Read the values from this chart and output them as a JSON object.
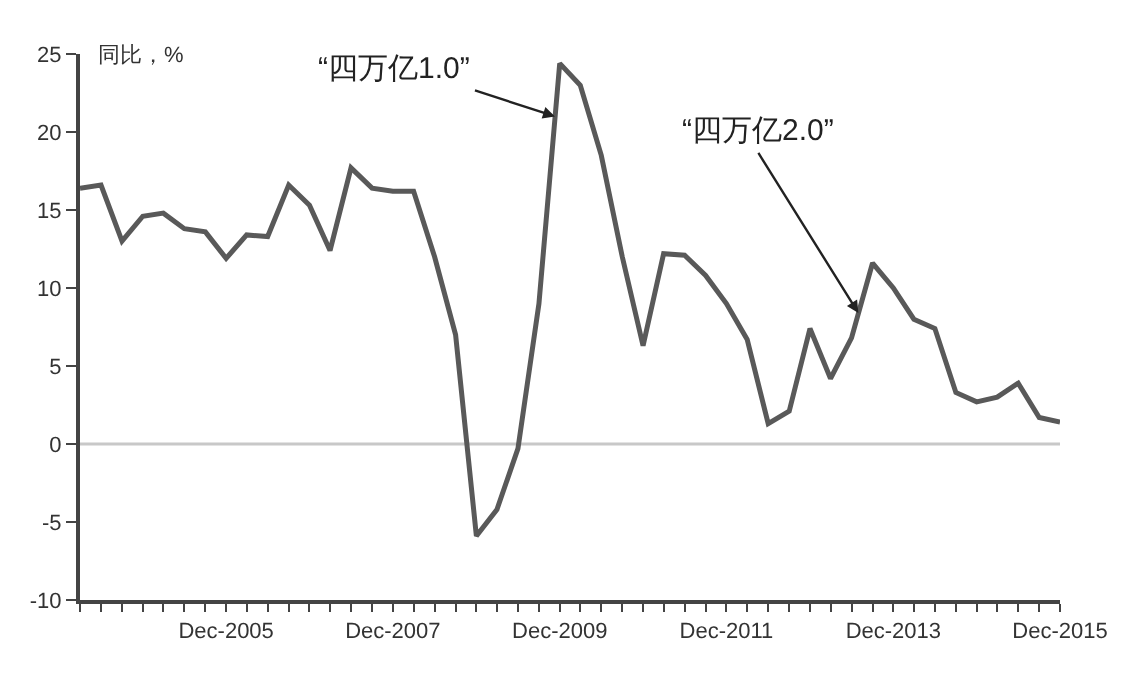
{
  "chart_data": {
    "type": "line",
    "ylabel": "同比，%",
    "x": [
      "2004-03",
      "2004-06",
      "2004-09",
      "2004-12",
      "2005-03",
      "2005-06",
      "2005-09",
      "2005-12",
      "2006-03",
      "2006-06",
      "2006-09",
      "2006-12",
      "2007-03",
      "2007-06",
      "2007-09",
      "2007-12",
      "2008-03",
      "2008-06",
      "2008-09",
      "2008-12",
      "2009-03",
      "2009-06",
      "2009-09",
      "2009-12",
      "2010-03",
      "2010-06",
      "2010-09",
      "2010-12",
      "2011-03",
      "2011-06",
      "2011-09",
      "2011-12",
      "2012-03",
      "2012-06",
      "2012-09",
      "2012-12",
      "2013-03",
      "2013-06",
      "2013-09",
      "2013-12",
      "2014-03",
      "2014-06",
      "2014-09",
      "2014-12",
      "2015-03",
      "2015-06",
      "2015-09",
      "2015-12"
    ],
    "series": [
      {
        "color": "#595959",
        "values": [
          16.4,
          16.6,
          13.0,
          14.6,
          14.8,
          13.8,
          13.6,
          11.9,
          13.4,
          13.3,
          16.6,
          15.3,
          12.4,
          17.7,
          16.4,
          16.2,
          16.2,
          12.0,
          7.0,
          -5.9,
          -4.2,
          -0.3,
          9.0,
          24.4,
          23.0,
          18.5,
          12.0,
          6.3,
          12.2,
          12.1,
          10.8,
          9.0,
          6.7,
          1.3,
          2.1,
          7.4,
          4.2,
          6.8,
          11.6,
          10.0,
          8.0,
          7.4,
          3.3,
          2.7,
          3.0,
          3.9,
          1.7,
          1.4
        ]
      }
    ],
    "xlim": [
      "2004-03",
      "2015-12"
    ],
    "xticks": [
      {
        "value": "2004-03",
        "label": null
      },
      {
        "value": "2004-06",
        "label": null
      },
      {
        "value": "2004-09",
        "label": null
      },
      {
        "value": "2004-12",
        "label": null
      },
      {
        "value": "2005-03",
        "label": null
      },
      {
        "value": "2005-06",
        "label": null
      },
      {
        "value": "2005-09",
        "label": null
      },
      {
        "value": "2005-12",
        "label": "Dec-2005"
      },
      {
        "value": "2006-03",
        "label": null
      },
      {
        "value": "2006-06",
        "label": null
      },
      {
        "value": "2006-09",
        "label": null
      },
      {
        "value": "2006-12",
        "label": null
      },
      {
        "value": "2007-03",
        "label": null
      },
      {
        "value": "2007-06",
        "label": null
      },
      {
        "value": "2007-09",
        "label": null
      },
      {
        "value": "2007-12",
        "label": "Dec-2007"
      },
      {
        "value": "2008-03",
        "label": null
      },
      {
        "value": "2008-06",
        "label": null
      },
      {
        "value": "2008-09",
        "label": null
      },
      {
        "value": "2008-12",
        "label": null
      },
      {
        "value": "2009-03",
        "label": null
      },
      {
        "value": "2009-06",
        "label": null
      },
      {
        "value": "2009-09",
        "label": null
      },
      {
        "value": "2009-12",
        "label": "Dec-2009"
      },
      {
        "value": "2010-03",
        "label": null
      },
      {
        "value": "2010-06",
        "label": null
      },
      {
        "value": "2010-09",
        "label": null
      },
      {
        "value": "2010-12",
        "label": null
      },
      {
        "value": "2011-03",
        "label": null
      },
      {
        "value": "2011-06",
        "label": null
      },
      {
        "value": "2011-09",
        "label": null
      },
      {
        "value": "2011-12",
        "label": "Dec-2011"
      },
      {
        "value": "2012-03",
        "label": null
      },
      {
        "value": "2012-06",
        "label": null
      },
      {
        "value": "2012-09",
        "label": null
      },
      {
        "value": "2012-12",
        "label": null
      },
      {
        "value": "2013-03",
        "label": null
      },
      {
        "value": "2013-06",
        "label": null
      },
      {
        "value": "2013-09",
        "label": null
      },
      {
        "value": "2013-12",
        "label": "Dec-2013"
      },
      {
        "value": "2014-03",
        "label": null
      },
      {
        "value": "2014-06",
        "label": null
      },
      {
        "value": "2014-09",
        "label": null
      },
      {
        "value": "2014-12",
        "label": null
      },
      {
        "value": "2015-03",
        "label": null
      },
      {
        "value": "2015-06",
        "label": null
      },
      {
        "value": "2015-09",
        "label": null
      },
      {
        "value": "2015-12",
        "label": "Dec-2015"
      }
    ],
    "ylim": [
      -10,
      25
    ],
    "yticks": [
      -10,
      -5,
      0,
      5,
      10,
      15,
      20,
      25
    ],
    "ref_lines": [
      {
        "axis": "y",
        "value": 0,
        "color": "#c8c8c8"
      }
    ],
    "annotations": [
      {
        "text": "“四万亿1.0”",
        "x": "2009-11-10",
        "y": 21
      },
      {
        "text": "“四万亿2.0”",
        "x": "2013-07",
        "y": 8.4
      }
    ],
    "grid": false,
    "marker": "none",
    "line_style": "solid"
  }
}
